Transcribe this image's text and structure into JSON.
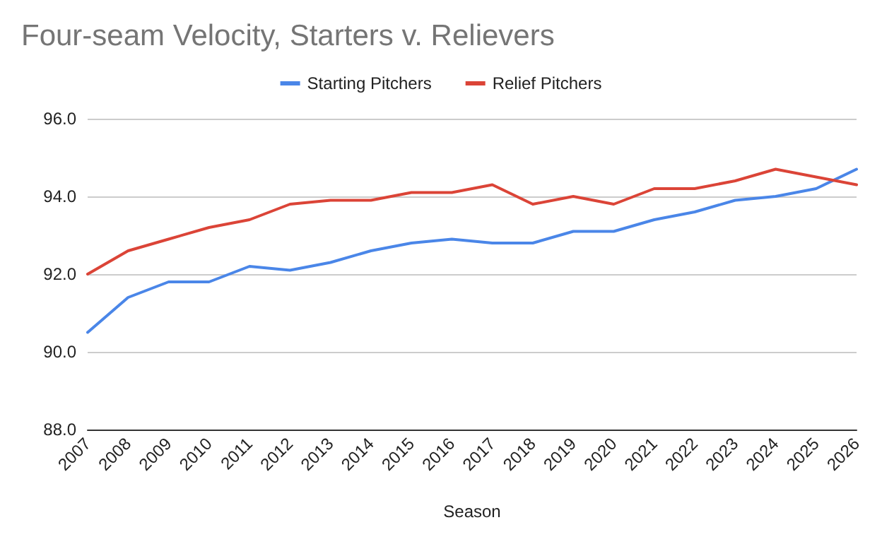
{
  "chart_data": {
    "type": "line",
    "title": "Four-seam Velocity, Starters v. Relievers",
    "xlabel": "Season",
    "categories": [
      "2007",
      "2008",
      "2009",
      "2010",
      "2011",
      "2012",
      "2013",
      "2014",
      "2015",
      "2016",
      "2017",
      "2018",
      "2019",
      "2020",
      "2021",
      "2022",
      "2023",
      "2024",
      "2025",
      "2026"
    ],
    "series": [
      {
        "name": "Starting Pitchers",
        "color": "#4a86e8",
        "values": [
          90.5,
          91.4,
          91.8,
          91.8,
          92.2,
          92.1,
          92.3,
          92.6,
          92.8,
          92.9,
          92.8,
          92.8,
          93.1,
          93.1,
          93.4,
          93.6,
          93.9,
          94.0,
          94.2,
          94.7
        ]
      },
      {
        "name": "Relief Pitchers",
        "color": "#db4437",
        "values": [
          92.0,
          92.6,
          92.9,
          93.2,
          93.4,
          93.8,
          93.9,
          93.9,
          94.1,
          94.1,
          94.3,
          93.8,
          94.0,
          93.8,
          94.2,
          94.2,
          94.4,
          94.7,
          94.5,
          94.3
        ]
      }
    ],
    "ylim": [
      88,
      96
    ],
    "yticks": [
      {
        "value": 88,
        "label": "88.0"
      },
      {
        "value": 90,
        "label": "90.0"
      },
      {
        "value": 92,
        "label": "92.0"
      },
      {
        "value": 94,
        "label": "94.0"
      },
      {
        "value": 96,
        "label": "96.0"
      }
    ],
    "grid": "y",
    "legend": "top",
    "marker": "none",
    "line_style": "solid"
  }
}
